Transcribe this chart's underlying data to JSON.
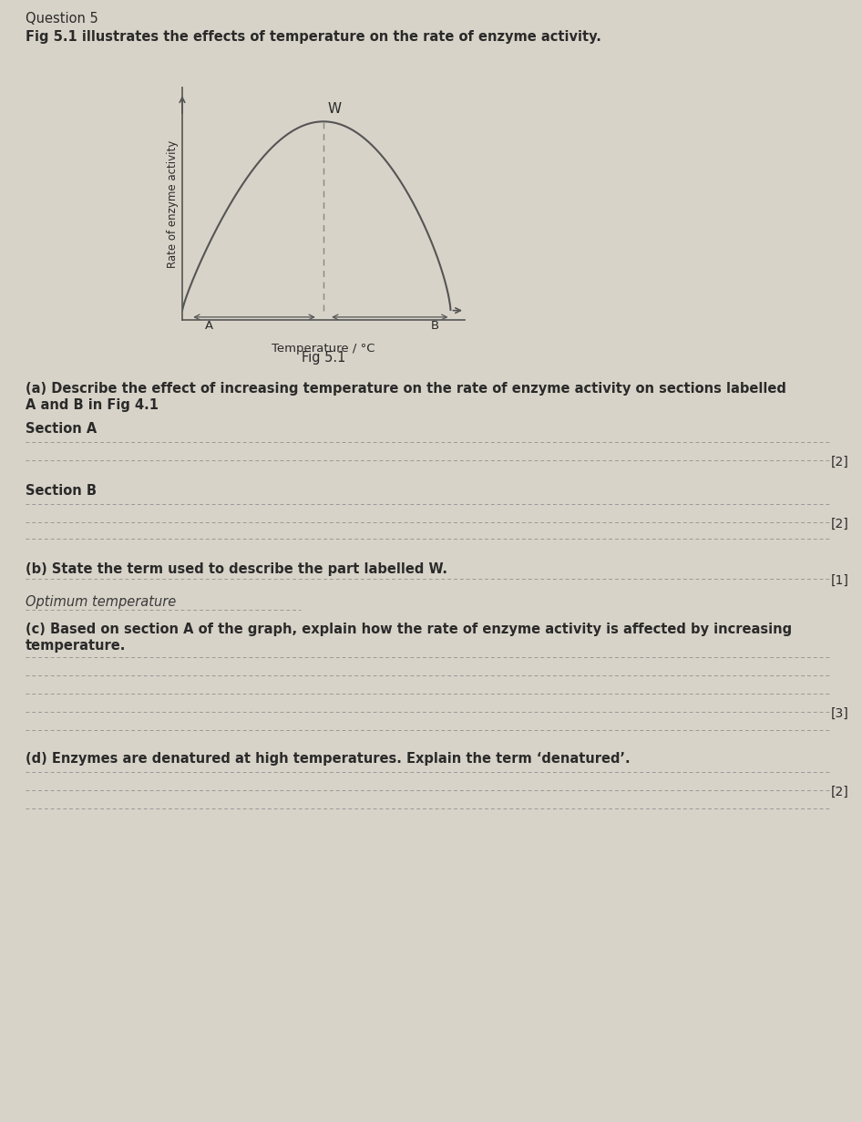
{
  "page_bg": "#d8d3c8",
  "question_number": "Question 5",
  "fig_description": "Fig 5.1 illustrates the effects of temperature on the rate of enzyme activity.",
  "fig_label": "Fig 5.1",
  "graph_ylabel": "Rate of enzyme activity",
  "graph_xlabel": "Temperature / °C",
  "section_a_label": "A",
  "section_b_label": "B",
  "peak_label": "W",
  "question_a_title": "(a) Describe the effect of increasing temperature on the rate of enzyme activity on sections labelled\nA and B in Fig 4.1",
  "section_a_header": "Section A",
  "section_b_header": "Section B",
  "question_b": "(b) State the term used to describe the part labelled W.",
  "answer_b": "Optimum temperature",
  "question_c": "(c) Based on section A of the graph, explain how the rate of enzyme activity is affected by increasing\ntemperature.",
  "question_d": "(d) Enzymes are denatured at high temperatures. Explain the term ‘denatured’.",
  "mark_a1": "[2]",
  "mark_a2": "[2]",
  "mark_b": "[1]",
  "mark_c": "[3]",
  "mark_d": "[2]",
  "text_color": "#2a2a2a",
  "curve_color": "#555555",
  "dashed_color": "#888888",
  "answer_line_color": "#999999"
}
